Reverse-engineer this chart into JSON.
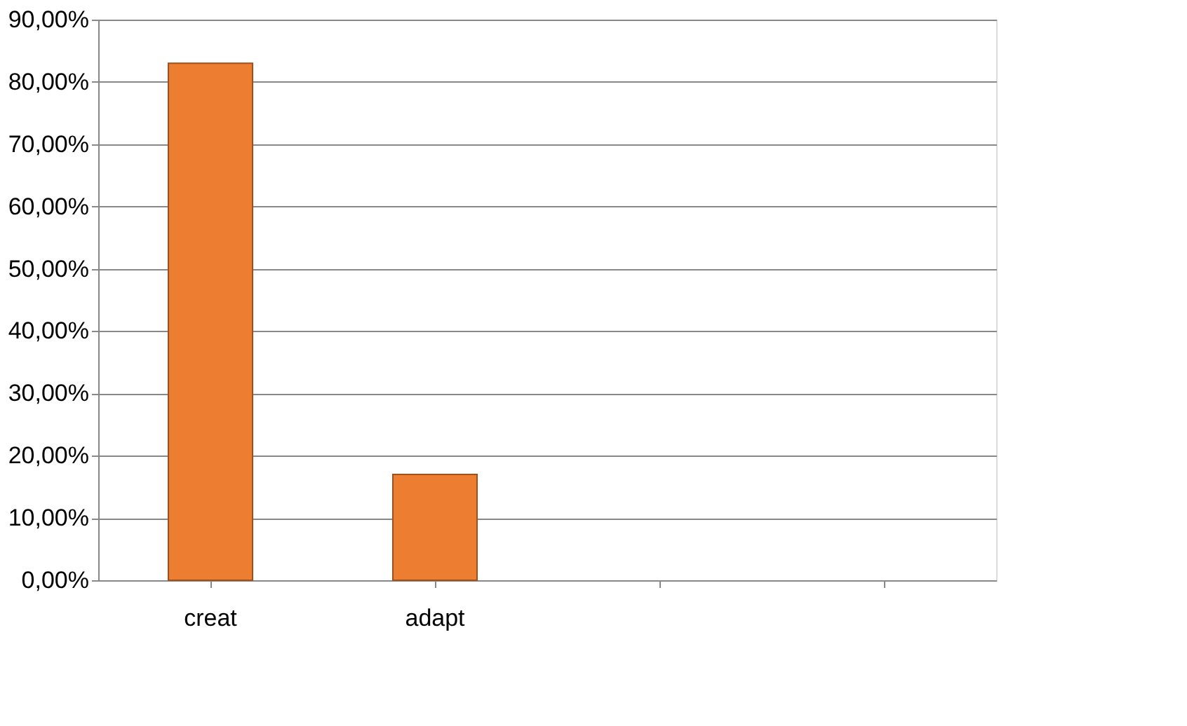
{
  "chart_data": {
    "type": "bar",
    "categories": [
      "creat",
      "adapt",
      null,
      null
    ],
    "values": [
      83,
      17,
      null,
      null
    ],
    "color": "#ed7d31",
    "ylim": [
      0,
      90
    ],
    "yticks": [
      {
        "value": 0,
        "label": "0,00%"
      },
      {
        "value": 10,
        "label": "10,00%"
      },
      {
        "value": 20,
        "label": "20,00%"
      },
      {
        "value": 30,
        "label": "30,00%"
      },
      {
        "value": 40,
        "label": "40,00%"
      },
      {
        "value": 50,
        "label": "50,00%"
      },
      {
        "value": 60,
        "label": "60,00%"
      },
      {
        "value": 70,
        "label": "70,00%"
      },
      {
        "value": 80,
        "label": "80,00%"
      },
      {
        "value": 90,
        "label": "90,00%"
      }
    ],
    "grid": "y"
  }
}
